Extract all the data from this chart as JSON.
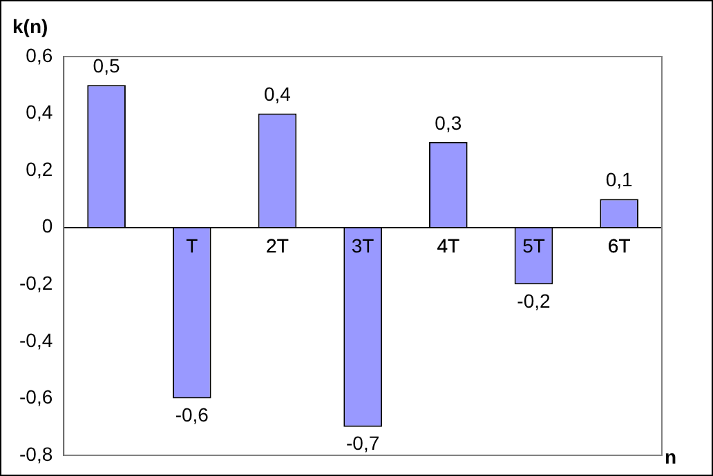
{
  "chart_data": {
    "type": "bar",
    "xlabel": "n",
    "ylabel": "k(n)",
    "categories": [
      null,
      "T",
      "2T",
      "3T",
      "4T",
      "5T",
      "6T"
    ],
    "values": [
      0.5,
      -0.6,
      0.4,
      -0.7,
      0.3,
      -0.2,
      0.1
    ],
    "value_labels": [
      "0,5",
      "-0,6",
      "0,4",
      "-0,7",
      "0,3",
      "-0,2",
      "0,1"
    ],
    "color": "#9999ff",
    "ylim": [
      -0.8,
      0.6
    ],
    "yticks": [
      {
        "value": -0.8,
        "label": "-0,8"
      },
      {
        "value": -0.6,
        "label": "-0,6"
      },
      {
        "value": -0.4,
        "label": "-0,4"
      },
      {
        "value": -0.2,
        "label": "-0,2"
      },
      {
        "value": 0,
        "label": "0"
      },
      {
        "value": 0.2,
        "label": "0,2"
      },
      {
        "value": 0.4,
        "label": "0,4"
      },
      {
        "value": 0.6,
        "label": "0,6"
      }
    ],
    "grid": false,
    "legend": false
  }
}
